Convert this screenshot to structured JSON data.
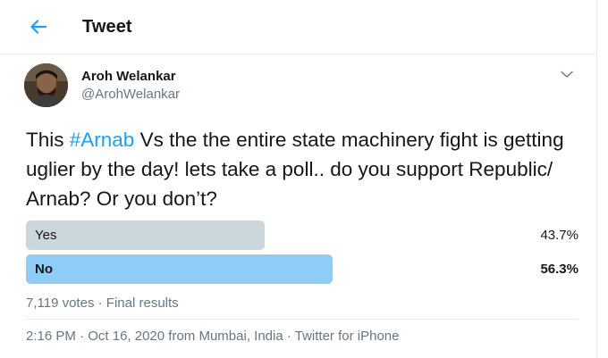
{
  "header": {
    "title": "Tweet"
  },
  "accent_color": "#1da1f2",
  "author": {
    "name": "Aroh Welankar",
    "handle": "@ArohWelankar"
  },
  "tweet": {
    "text_before": "This ",
    "hashtag": "#Arnab",
    "text_after": " Vs the the entire state machinery fight is getting uglier by the day!  lets take a poll.. do you support Republic/ Arnab? Or you don’t?"
  },
  "poll": {
    "options": [
      {
        "label": "Yes",
        "percent": "43.7%",
        "fraction": 0.437,
        "winner": false,
        "bar_color": "#ccd6dd"
      },
      {
        "label": "No",
        "percent": "56.3%",
        "fraction": 0.563,
        "winner": true,
        "bar_color": "#8ecdf8"
      }
    ],
    "votes": "7,119 votes",
    "status": "Final results"
  },
  "meta": {
    "time": "2:16 PM",
    "date": "Oct 16, 2020",
    "location_prefix": "from",
    "location": "Mumbai, India",
    "source": "Twitter for iPhone"
  }
}
